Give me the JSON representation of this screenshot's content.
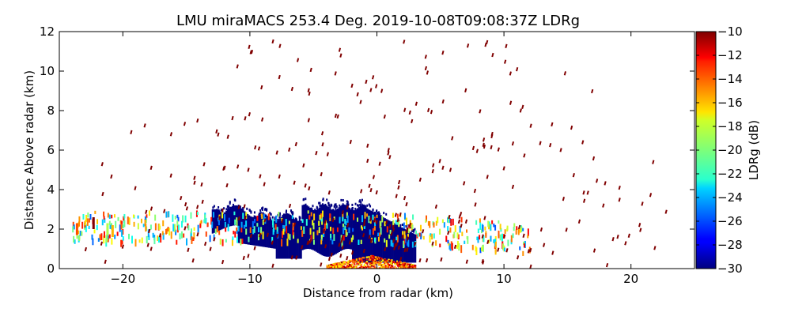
{
  "chart_data": {
    "type": "heatmap",
    "title": "LMU miraMACS 253.4 Deg. 2019-10-08T09:08:37Z  LDRg",
    "xlabel": "Distance from radar (km)",
    "ylabel": "Distance Above radar  (km)",
    "xlim": [
      -25,
      25
    ],
    "ylim": [
      0,
      12
    ],
    "xticks": [
      -20,
      -10,
      0,
      10,
      20
    ],
    "xtick_labels": [
      "−20",
      "−10",
      "0",
      "10",
      "20"
    ],
    "yticks": [
      0,
      2,
      4,
      6,
      8,
      10,
      12
    ],
    "ytick_labels": [
      "0",
      "2",
      "4",
      "6",
      "8",
      "10",
      "12"
    ],
    "colorbar": {
      "label": "LDRg (dB)",
      "range": [
        -30,
        -10
      ],
      "ticks": [
        -10,
        -12,
        -14,
        -16,
        -18,
        -20,
        -22,
        -24,
        -26,
        -28,
        -30
      ],
      "tick_labels": [
        "−10",
        "−12",
        "−14",
        "−16",
        "−18",
        "−20",
        "−22",
        "−24",
        "−26",
        "−28",
        "−30"
      ],
      "colormap": "jet"
    },
    "regions": [
      {
        "name": "main-low-ldr-echo",
        "ldr_db": -30,
        "x_range": [
          -13,
          3
        ],
        "z_range": [
          0.1,
          3.3
        ]
      },
      {
        "name": "surface-high-ldr-echo",
        "ldr_db": -11,
        "x_range": [
          -4,
          3
        ],
        "z_range": [
          0,
          0.7
        ]
      },
      {
        "name": "sparse-mixed-ldr-band",
        "ldr_db_range": [
          -26,
          -12
        ],
        "x_range": [
          -24,
          12
        ],
        "z_range": [
          1.5,
          3
        ]
      },
      {
        "name": "scattered-high-ldr-speckles",
        "ldr_db": -10,
        "x_range": [
          -23,
          23
        ],
        "z_range": [
          0,
          12
        ]
      }
    ]
  }
}
